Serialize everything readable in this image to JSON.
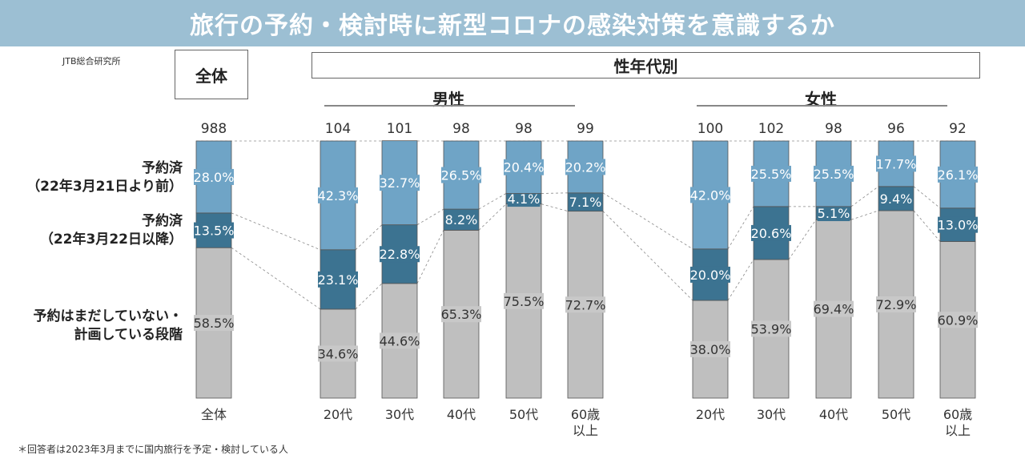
{
  "title": "旅行の予約・検討時に新型コロナの感染対策を意識するか",
  "source": "JTB総合研究所",
  "footnote": "＊回答者は2023年3月までに国内旅行を予定・検討している人",
  "headers": {
    "overall": "全体",
    "by_group": "性年代別",
    "male": "男性",
    "female": "女性"
  },
  "row_labels": {
    "reserved_before_line1": "予約済",
    "reserved_before_line2": "（22年3月21日より前）",
    "reserved_after_line1": "予約済",
    "reserved_after_line2": "（22年3月22日以降）",
    "not_reserved_line1": "予約はまだしていない・",
    "not_reserved_line2": "計画している段階"
  },
  "colors": {
    "reserved_before": "#6fa4c6",
    "reserved_after": "#3c7391",
    "not_reserved": "#bfbfbf",
    "title_bar": "#9cbfd3"
  },
  "chart_data": {
    "type": "bar",
    "stacked": "100%",
    "categories": [
      {
        "label": "全体",
        "n": 988,
        "group": ""
      },
      {
        "label": "20代",
        "n": 104,
        "group": "男性"
      },
      {
        "label": "30代",
        "n": 101,
        "group": "男性"
      },
      {
        "label": "40代",
        "n": 98,
        "group": "男性"
      },
      {
        "label": "50代",
        "n": 98,
        "group": "男性"
      },
      {
        "label": "60歳\n以上",
        "n": 99,
        "group": "男性"
      },
      {
        "label": "20代",
        "n": 100,
        "group": "女性"
      },
      {
        "label": "30代",
        "n": 102,
        "group": "女性"
      },
      {
        "label": "40代",
        "n": 98,
        "group": "女性"
      },
      {
        "label": "50代",
        "n": 96,
        "group": "女性"
      },
      {
        "label": "60歳\n以上",
        "n": 92,
        "group": "女性"
      }
    ],
    "series": [
      {
        "key": "not_reserved",
        "values": [
          58.5,
          34.6,
          44.6,
          65.3,
          75.5,
          72.7,
          38.0,
          53.9,
          69.4,
          72.9,
          60.9
        ]
      },
      {
        "key": "reserved_after",
        "values": [
          13.5,
          23.1,
          22.8,
          8.2,
          4.1,
          7.1,
          20.0,
          20.6,
          5.1,
          9.4,
          13.0
        ]
      },
      {
        "key": "reserved_before",
        "values": [
          28.0,
          42.3,
          32.7,
          26.5,
          20.4,
          20.2,
          42.0,
          25.5,
          25.5,
          17.7,
          26.1
        ]
      }
    ],
    "ylim": [
      0,
      100
    ]
  }
}
